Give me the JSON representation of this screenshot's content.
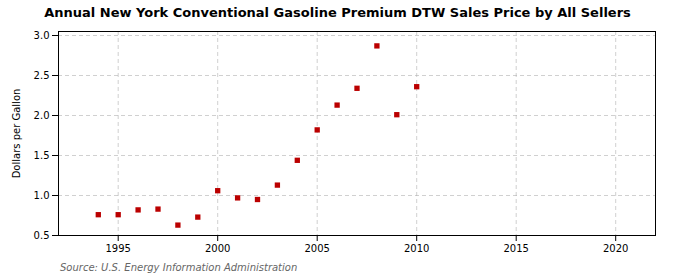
{
  "chart_data": {
    "type": "scatter",
    "title": "Annual New York Conventional Gasoline Premium DTW Sales Price by All Sellers",
    "ylabel": "Dollars per Gallon",
    "source": "Source: U.S. Energy Information Administration",
    "x": [
      1994,
      1995,
      1996,
      1997,
      1998,
      1999,
      2000,
      2001,
      2002,
      2003,
      2004,
      2005,
      2006,
      2007,
      2008,
      2009,
      2010
    ],
    "values": [
      0.76,
      0.76,
      0.82,
      0.83,
      0.63,
      0.73,
      1.06,
      0.97,
      0.95,
      1.13,
      1.44,
      1.82,
      2.13,
      2.34,
      2.87,
      2.01,
      2.36
    ],
    "color": "#bb0000",
    "marker": "square",
    "xlim": [
      1992,
      2022
    ],
    "ylim": [
      0.5,
      3.05
    ],
    "xticks": [
      1995,
      2000,
      2005,
      2010,
      2015,
      2020
    ],
    "yticks": [
      0.5,
      {
        "value": 1,
        "label": "1.0"
      },
      1.5,
      {
        "value": 2,
        "label": "2.0"
      },
      2.5,
      {
        "value": 3,
        "label": "3.0"
      }
    ],
    "grid": true
  }
}
